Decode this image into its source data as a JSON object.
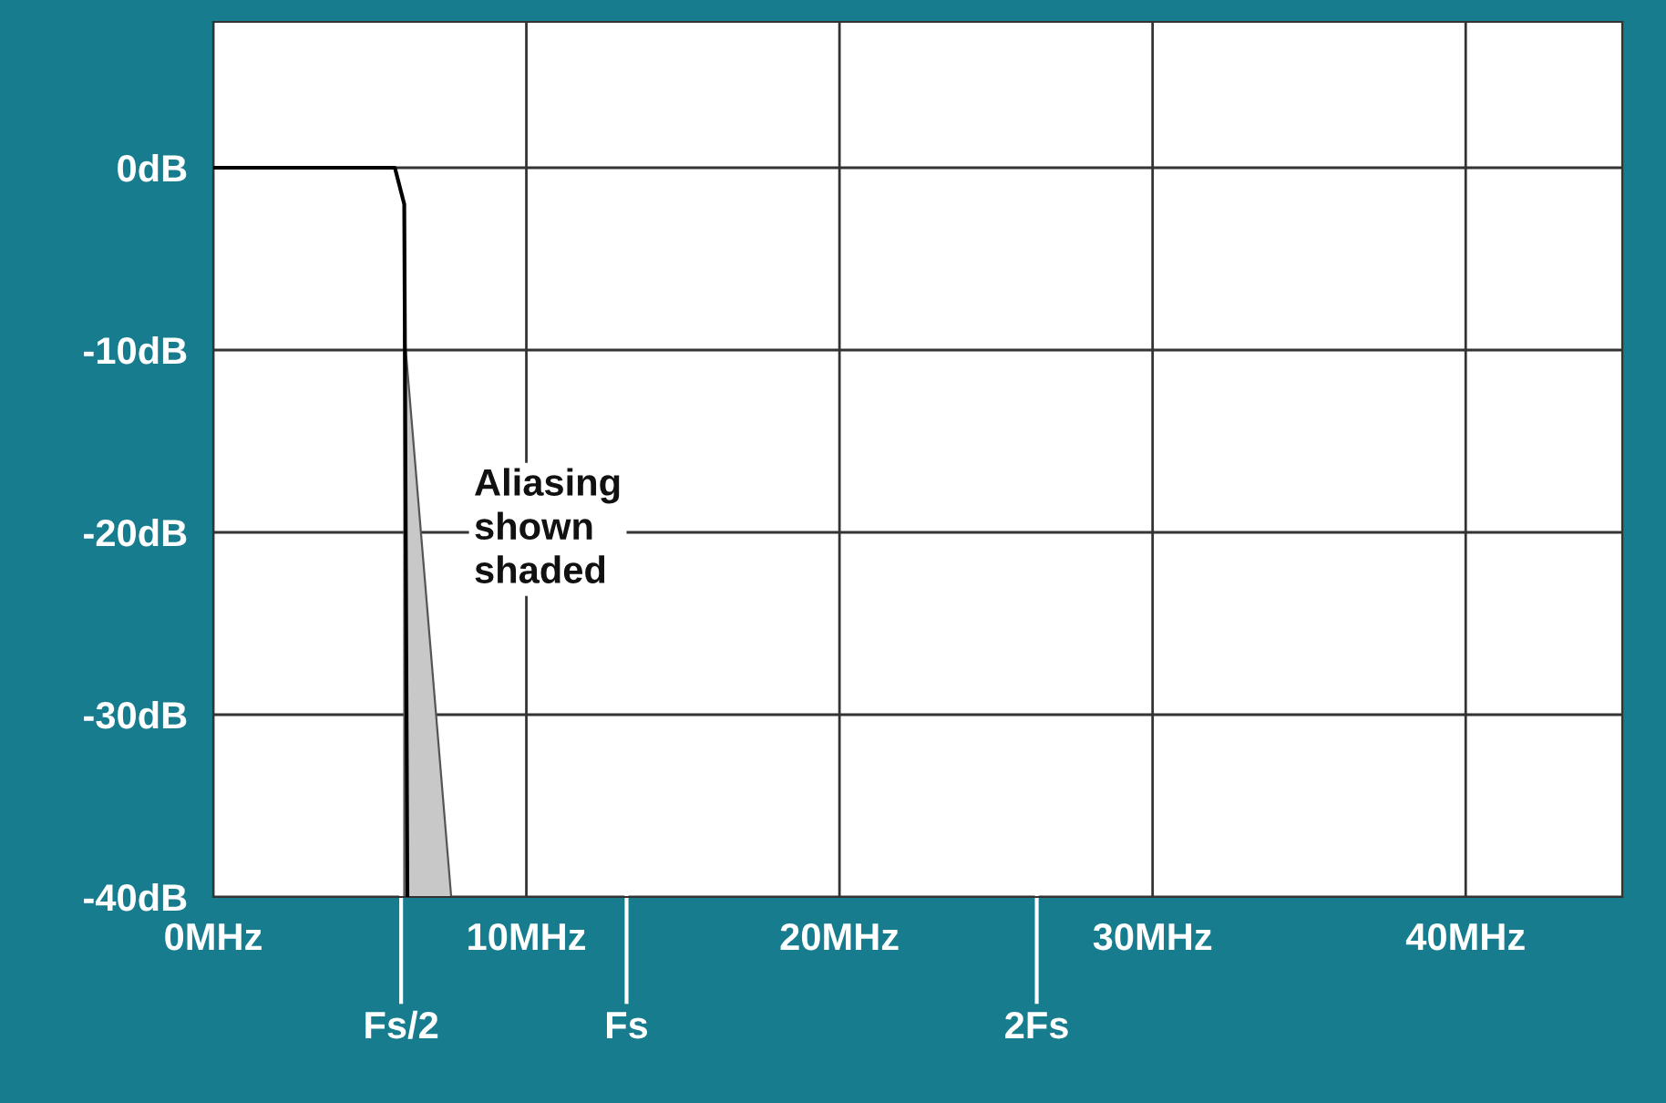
{
  "chart_data": {
    "type": "line",
    "xlim": [
      0,
      45
    ],
    "ylim": [
      -40,
      8
    ],
    "xticks": [
      {
        "value": 0,
        "label": "0MHz"
      },
      {
        "value": 10,
        "label": "10MHz"
      },
      {
        "value": 20,
        "label": "20MHz"
      },
      {
        "value": 30,
        "label": "30MHz"
      },
      {
        "value": 40,
        "label": "40MHz"
      }
    ],
    "yticks": [
      {
        "value": 0,
        "label": "0dB"
      },
      {
        "value": -10,
        "label": "-10dB"
      },
      {
        "value": -20,
        "label": "-20dB"
      },
      {
        "value": -30,
        "label": "-30dB"
      },
      {
        "value": -40,
        "label": "-40dB"
      }
    ],
    "grid": true,
    "series": [
      {
        "type": "area",
        "color": "#c8c8c8",
        "x": [
          6.1,
          7.6
        ],
        "values": [
          -9,
          -40
        ]
      },
      {
        "color": "#000000",
        "x": [
          0,
          5.8,
          6.1,
          6.2
        ],
        "values": [
          0,
          0,
          -2,
          -40
        ]
      }
    ],
    "ref_lines": [
      {
        "axis": "x",
        "value": 6.0,
        "label": "Fs/2"
      },
      {
        "axis": "x",
        "value": 13.2,
        "label": "Fs"
      },
      {
        "axis": "x",
        "value": 26.3,
        "label": "2Fs"
      }
    ],
    "annotations": [
      "Aliasing\nshown\nshaded"
    ]
  }
}
